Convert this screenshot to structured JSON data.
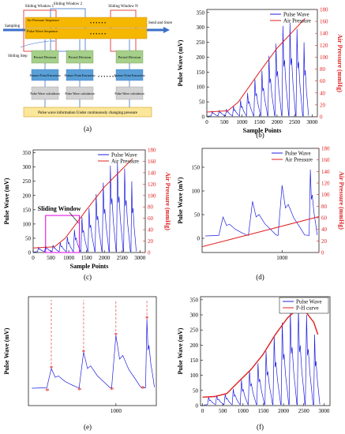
{
  "panel_labels": [
    "(a)",
    "(b)",
    "(c)",
    "(d)",
    "(e)",
    "(f)"
  ],
  "diagram_a": {
    "sliding_window_1": "Sliding Window 1",
    "sliding_window_2": "Sliding Window 2",
    "sliding_window_n": "Sliding Window N",
    "sampling": "Sampling",
    "send_and_store": "Send and Store",
    "air_pressure_sequence": "Air Pressure Sequence",
    "pulse_wave_sequence": "Pulse Wave Sequence",
    "dots": "• • • • • •",
    "sliding_step": "Sliding Step",
    "period_division": "Period Division",
    "feature_point_extraction": "Feature Point Extraction",
    "pulse_wave_calculation": "Pulse Wave calculation",
    "ellipsis": "• • • • • • •",
    "bottom_caption": "Pulse wave information Under continuously changing pressure",
    "colors": {
      "bar": "#f5b700",
      "bar_border": "#c98f00",
      "green": "#a6d08a",
      "blue": "#5aa0d8",
      "grey": "#d2d2d2",
      "caption_bg": "#fbe79a",
      "arrow": "#3a70c8",
      "window": "#e02020"
    }
  },
  "chart_data": [
    {
      "id": "b",
      "type": "line",
      "xlabel": "Sample Points",
      "ylabel": "Pulse Wave (mV)",
      "ylabel_right": "Air Pressure (mmHg)",
      "xlim": [
        0,
        3150
      ],
      "ylim": [
        0,
        360
      ],
      "ylim_right": [
        0,
        180
      ],
      "xticks": [
        0,
        500,
        1000,
        1500,
        2000,
        2500,
        3000
      ],
      "yticks": [
        0,
        50,
        100,
        150,
        200,
        250,
        300,
        350
      ],
      "yticks_right": [
        0,
        20,
        40,
        60,
        80,
        100,
        120,
        140,
        160,
        180
      ],
      "legend": [
        "Pulse Wave",
        "Air Pressure"
      ],
      "legend_position": "top-right",
      "pulse_peaks": [
        [
          150,
          18
        ],
        [
          350,
          22
        ],
        [
          560,
          26
        ],
        [
          760,
          35
        ],
        [
          960,
          55
        ],
        [
          1160,
          80
        ],
        [
          1370,
          125
        ],
        [
          1570,
          155
        ],
        [
          1770,
          205
        ],
        [
          1970,
          245
        ],
        [
          2170,
          305
        ],
        [
          2370,
          315
        ],
        [
          2570,
          295
        ],
        [
          2770,
          250
        ]
      ],
      "pressure": [
        [
          0,
          8
        ],
        [
          600,
          10
        ],
        [
          900,
          25
        ],
        [
          1500,
          75
        ],
        [
          2000,
          115
        ],
        [
          2400,
          140
        ],
        [
          2800,
          165
        ]
      ],
      "colors": {
        "pulse": "#2020e0",
        "pressure": "#e02020"
      }
    },
    {
      "id": "c",
      "type": "line",
      "xlabel": "Sample Points",
      "ylabel": "Pulse Wave (mV)",
      "ylabel_right": "Air Pressure (mmHg)",
      "xlim": [
        0,
        3150
      ],
      "ylim": [
        0,
        360
      ],
      "ylim_right": [
        0,
        180
      ],
      "xticks": [
        0,
        500,
        1000,
        1500,
        2000,
        2500,
        3000
      ],
      "yticks": [
        0,
        50,
        100,
        150,
        200,
        250,
        300,
        350
      ],
      "yticks_right": [
        0,
        20,
        40,
        60,
        80,
        100,
        120,
        140,
        160,
        180
      ],
      "legend": [
        "Pulse Wave",
        "Air Pressure"
      ],
      "legend_position": "top-right",
      "annotation": "Sliding Window",
      "window_range": [
        350,
        1300
      ],
      "window_y": [
        0,
        130
      ],
      "pulse_peaks": [
        [
          150,
          18
        ],
        [
          350,
          22
        ],
        [
          560,
          26
        ],
        [
          760,
          35
        ],
        [
          960,
          55
        ],
        [
          1160,
          80
        ],
        [
          1370,
          125
        ],
        [
          1570,
          155
        ],
        [
          1770,
          205
        ],
        [
          1970,
          245
        ],
        [
          2170,
          305
        ],
        [
          2370,
          315
        ],
        [
          2570,
          295
        ],
        [
          2770,
          250
        ]
      ],
      "pressure": [
        [
          0,
          8
        ],
        [
          600,
          10
        ],
        [
          900,
          25
        ],
        [
          1500,
          75
        ],
        [
          2000,
          115
        ],
        [
          2400,
          140
        ],
        [
          2800,
          165
        ]
      ],
      "colors": {
        "pulse": "#2020e0",
        "pressure": "#e02020",
        "window": "#e000e0"
      }
    },
    {
      "id": "d",
      "type": "line",
      "ylabel": "Pulse Wave (mV)",
      "ylabel_right": "Air Pressure (mmHg)",
      "xlim": [
        350,
        1300
      ],
      "ylim": [
        -30,
        190
      ],
      "ylim_right": [
        0,
        180
      ],
      "xticks": [
        1000
      ],
      "yticks": [
        0,
        50,
        100,
        150
      ],
      "yticks_right": [
        0,
        20,
        40,
        60,
        80,
        100,
        120,
        140,
        160,
        180
      ],
      "legend": [
        "Pulse Wave",
        "Air Pressure"
      ],
      "legend_position": "top-right",
      "pulse_peaks": [
        [
          520,
          45
        ],
        [
          760,
          78
        ],
        [
          1000,
          112
        ],
        [
          1230,
          145
        ]
      ],
      "pressure": [
        [
          350,
          10
        ],
        [
          1300,
          62
        ]
      ],
      "colors": {
        "pulse": "#2020e0",
        "pressure": "#e02020"
      }
    },
    {
      "id": "e",
      "type": "line",
      "ylabel": "Pulse Wave (mV)",
      "xlim": [
        350,
        1300
      ],
      "ylim": [
        -30,
        190
      ],
      "xticks": [
        1000
      ],
      "pulse_peaks": [
        [
          520,
          45
        ],
        [
          760,
          78
        ],
        [
          1000,
          112
        ],
        [
          1230,
          145
        ]
      ],
      "markers": {
        "peaks": [
          [
            520,
            45
          ],
          [
            760,
            78
          ],
          [
            1000,
            112
          ],
          [
            1230,
            145
          ]
        ],
        "troughs": [
          [
            490,
            0
          ],
          [
            730,
            2
          ],
          [
            970,
            3
          ],
          [
            1200,
            5
          ]
        ]
      },
      "colors": {
        "pulse": "#2020e0",
        "marker": "#e02020"
      }
    },
    {
      "id": "f",
      "type": "line",
      "ylabel": "Pulse Wave (mV)",
      "xlim": [
        -50,
        3150
      ],
      "ylim": [
        0,
        360
      ],
      "xticks": [
        0,
        500,
        1000,
        1500,
        2000,
        2500,
        3000
      ],
      "yticks": [
        0,
        50,
        100,
        150,
        200,
        250,
        300,
        350
      ],
      "legend": [
        "Pulse Wave",
        "P-H curve"
      ],
      "legend_position": "top-right",
      "pulse_peaks": [
        [
          150,
          28
        ],
        [
          350,
          33
        ],
        [
          560,
          38
        ],
        [
          760,
          55
        ],
        [
          960,
          85
        ],
        [
          1160,
          115
        ],
        [
          1370,
          140
        ],
        [
          1570,
          180
        ],
        [
          1770,
          230
        ],
        [
          1970,
          275
        ],
        [
          2170,
          310
        ],
        [
          2370,
          320
        ],
        [
          2570,
          300
        ],
        [
          2770,
          235
        ]
      ],
      "envelope": [
        [
          0,
          28
        ],
        [
          300,
          30
        ],
        [
          600,
          40
        ],
        [
          900,
          80
        ],
        [
          1200,
          120
        ],
        [
          1500,
          170
        ],
        [
          1800,
          235
        ],
        [
          2100,
          290
        ],
        [
          2350,
          320
        ],
        [
          2550,
          310
        ],
        [
          2750,
          275
        ],
        [
          2850,
          235
        ]
      ],
      "colors": {
        "pulse": "#2020e0",
        "envelope": "#e02020"
      }
    }
  ]
}
